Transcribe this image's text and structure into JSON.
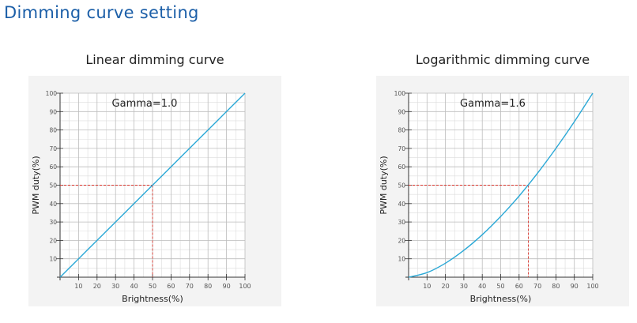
{
  "page_title": "Dimming curve setting",
  "colors": {
    "curve": "#2aa8d6",
    "guide": "#d9342b",
    "panel": "#f3f3f3",
    "grid": "#bcbcbc",
    "heading": "#1c5fa8"
  },
  "chart_data": [
    {
      "type": "line",
      "title": "Linear dimming curve",
      "annotation": "Gamma=1.0",
      "xlabel": "Brightness(%)",
      "ylabel": "PWM duty(%)",
      "xlim": [
        0,
        100
      ],
      "ylim": [
        0,
        100
      ],
      "xticks": [
        10,
        20,
        30,
        40,
        50,
        60,
        70,
        80,
        90,
        100
      ],
      "yticks": [
        10,
        20,
        30,
        40,
        50,
        60,
        70,
        80,
        90,
        100
      ],
      "grid": true,
      "x": [
        0,
        10,
        20,
        30,
        40,
        50,
        60,
        70,
        80,
        90,
        100
      ],
      "y": [
        0,
        10,
        20,
        30,
        40,
        50,
        60,
        70,
        80,
        90,
        100
      ],
      "reference": {
        "x": 50,
        "y": 50
      }
    },
    {
      "type": "line",
      "title": "Logarithmic dimming curve",
      "annotation": "Gamma=1.6",
      "xlabel": "Brightness(%)",
      "ylabel": "PWM duty(%)",
      "xlim": [
        0,
        100
      ],
      "ylim": [
        0,
        100
      ],
      "xticks": [
        10,
        20,
        30,
        40,
        50,
        60,
        70,
        80,
        90,
        100
      ],
      "yticks": [
        10,
        20,
        30,
        40,
        50,
        60,
        70,
        80,
        90,
        100
      ],
      "grid": true,
      "x": [
        0,
        10,
        20,
        30,
        40,
        50,
        60,
        70,
        80,
        90,
        100
      ],
      "y": [
        0,
        2.5,
        7.6,
        14.6,
        23.1,
        33.0,
        44.1,
        56.5,
        70.0,
        84.5,
        100
      ],
      "reference": {
        "x": 65,
        "y": 50
      }
    }
  ]
}
